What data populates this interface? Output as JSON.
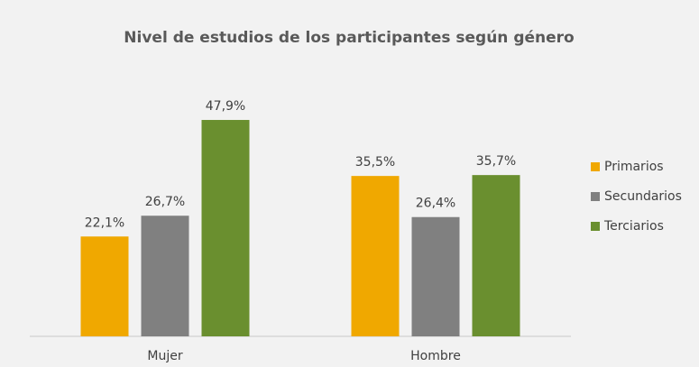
{
  "chart_data": {
    "type": "bar",
    "title": "Nivel de estudios de los participantes según género",
    "categories": [
      "Mujer",
      "Hombre"
    ],
    "series": [
      {
        "name": "Primarios",
        "color": "#f0a800",
        "values": [
          22.1,
          35.5
        ],
        "value_labels": [
          "22,1%",
          "35,5%"
        ]
      },
      {
        "name": "Secundarios",
        "color": "#808080",
        "values": [
          26.7,
          26.4
        ],
        "value_labels": [
          "26,7%",
          "26,4%"
        ]
      },
      {
        "name": "Terciarios",
        "color": "#6a8f2f",
        "values": [
          47.9,
          35.7
        ],
        "value_labels": [
          "47,9%",
          "35,7%"
        ]
      }
    ],
    "legend": "right"
  }
}
